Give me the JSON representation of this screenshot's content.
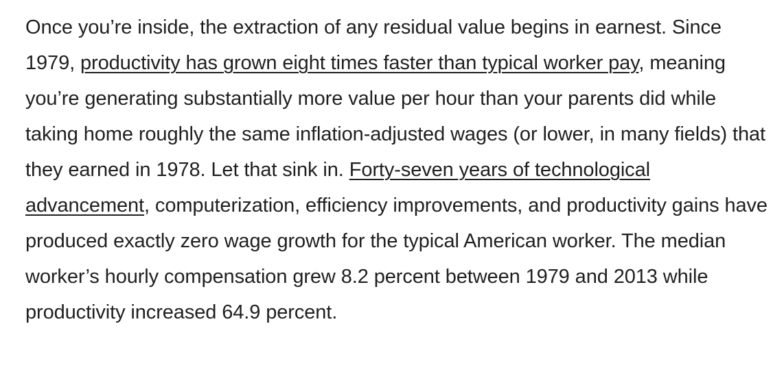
{
  "article": {
    "segments": [
      {
        "type": "text",
        "text": "Once you’re inside, the extraction of any residual value begins in earnest. Since 1979, "
      },
      {
        "type": "link",
        "text": "productivity has grown eight times faster than typical worker pay"
      },
      {
        "type": "text",
        "text": ", meaning you’re generating substantially more value per hour than your parents did while taking home roughly the same inflation-adjusted wages (or lower, in many fields) that they earned in 1978. Let that sink in. "
      },
      {
        "type": "link",
        "text": "Forty-seven years of technological advancement"
      },
      {
        "type": "text",
        "text": ", computerization, efficiency improvements, and productivity gains have produced exactly zero wage growth for the typical American worker. The median worker’s hourly compensation grew 8.2 percent between 1979 and 2013 while productivity increased 64.9 percent."
      }
    ]
  }
}
